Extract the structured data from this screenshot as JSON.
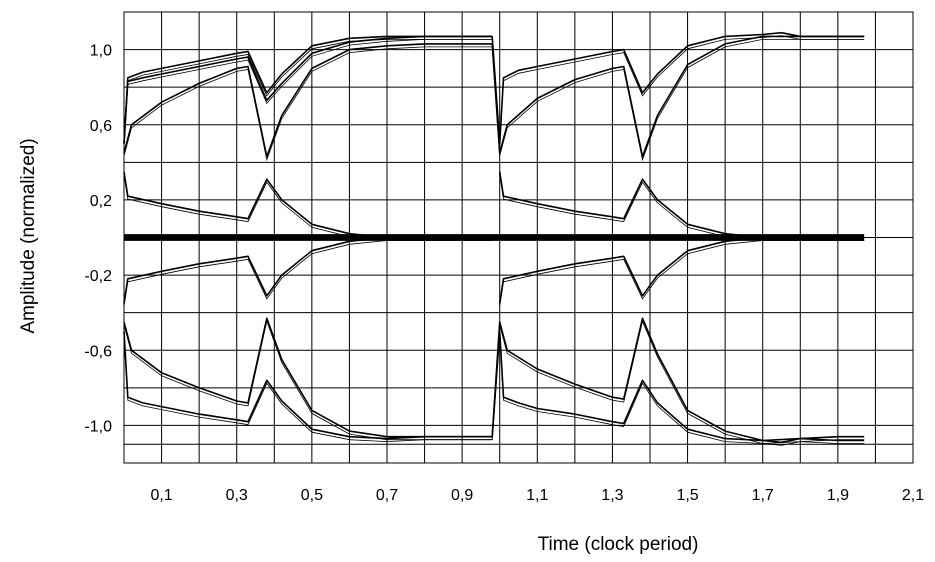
{
  "chart_data": {
    "type": "line",
    "title": "",
    "xlabel": "Time (clock period)",
    "ylabel": "Amplitude (normalized)",
    "xlim": [
      0,
      2.1
    ],
    "ylim": [
      -1.2,
      1.2
    ],
    "x_tick_labels": [
      "0,1",
      "0,3",
      "0,5",
      "0,7",
      "0,9",
      "1,1",
      "1,3",
      "1,5",
      "1,7",
      "1,9",
      "2,1"
    ],
    "x_tick_values": [
      0.1,
      0.3,
      0.5,
      0.7,
      0.9,
      1.1,
      1.3,
      1.5,
      1.7,
      1.9,
      2.1
    ],
    "y_tick_labels": [
      "1,0",
      "0,6",
      "0,2",
      "-0,2",
      "-0,6",
      "-1,0"
    ],
    "y_tick_values": [
      1.0,
      0.6,
      0.2,
      -0.2,
      -0.6,
      -1.0
    ],
    "grid": true,
    "legend": "none",
    "line_color": "#000000",
    "series": [
      {
        "x": [
          0,
          0.01,
          0.05,
          0.1,
          0.2,
          0.3,
          0.33,
          0.38,
          0.42,
          0.5,
          0.6,
          0.7,
          0.8,
          0.9,
          0.98
        ],
        "y": [
          0.5,
          0.85,
          0.88,
          0.9,
          0.94,
          0.98,
          0.99,
          0.77,
          0.87,
          1.02,
          1.06,
          1.07,
          1.07,
          1.07,
          1.07
        ]
      },
      {
        "x": [
          0,
          0.01,
          0.05,
          0.1,
          0.2,
          0.3,
          0.33,
          0.38,
          0.42,
          0.5,
          0.6,
          0.7,
          0.8,
          0.9,
          0.98
        ],
        "y": [
          0.5,
          0.83,
          0.85,
          0.87,
          0.91,
          0.95,
          0.96,
          0.73,
          0.82,
          0.98,
          1.04,
          1.06,
          1.07,
          1.07,
          1.07
        ]
      },
      {
        "x": [
          0,
          0.02,
          0.1,
          0.2,
          0.3,
          0.33,
          0.38,
          0.42,
          0.5,
          0.6,
          0.7,
          0.8,
          0.9,
          0.98
        ],
        "y": [
          0.45,
          0.6,
          0.72,
          0.82,
          0.9,
          0.91,
          0.43,
          0.65,
          0.9,
          1.0,
          1.02,
          1.03,
          1.03,
          1.03
        ]
      },
      {
        "x": [
          0,
          0.01,
          0.1,
          0.2,
          0.3,
          0.33,
          0.38,
          0.42,
          0.5,
          0.6,
          0.7,
          0.8,
          0.9,
          0.98
        ],
        "y": [
          0.35,
          0.22,
          0.18,
          0.14,
          0.11,
          0.1,
          0.31,
          0.2,
          0.07,
          0.02,
          0.0,
          0.0,
          0.0,
          0.0
        ]
      },
      {
        "x": [
          0,
          0.01,
          0.1,
          0.2,
          0.3,
          0.33,
          0.38,
          0.42,
          0.5,
          0.6,
          0.7,
          0.8,
          0.9,
          0.98
        ],
        "y": [
          -0.35,
          -0.22,
          -0.18,
          -0.14,
          -0.11,
          -0.1,
          -0.31,
          -0.2,
          -0.07,
          -0.02,
          0.0,
          0.0,
          0.0,
          0.0
        ]
      },
      {
        "x": [
          0,
          0.02,
          0.1,
          0.2,
          0.3,
          0.33,
          0.38,
          0.42,
          0.5,
          0.6,
          0.7,
          0.8,
          0.9,
          0.98
        ],
        "y": [
          -0.45,
          -0.6,
          -0.72,
          -0.8,
          -0.87,
          -0.88,
          -0.43,
          -0.65,
          -0.92,
          -1.03,
          -1.06,
          -1.06,
          -1.06,
          -1.06
        ]
      },
      {
        "x": [
          0,
          0.01,
          0.05,
          0.1,
          0.2,
          0.3,
          0.33,
          0.38,
          0.42,
          0.5,
          0.6,
          0.7,
          0.8,
          0.9,
          0.98
        ],
        "y": [
          -0.5,
          -0.85,
          -0.88,
          -0.9,
          -0.94,
          -0.97,
          -0.98,
          -0.76,
          -0.87,
          -1.02,
          -1.06,
          -1.07,
          -1.06,
          -1.06,
          -1.06
        ]
      },
      {
        "x": [
          0.98,
          1.0,
          1.01,
          1.05,
          1.1,
          1.2,
          1.3,
          1.33,
          1.38,
          1.42,
          1.5,
          1.6,
          1.7,
          1.75,
          1.8,
          1.9,
          1.97
        ],
        "y": [
          1.07,
          0.5,
          0.85,
          0.89,
          0.91,
          0.95,
          0.99,
          1.0,
          0.77,
          0.87,
          1.02,
          1.07,
          1.08,
          1.09,
          1.07,
          1.07,
          1.07
        ]
      },
      {
        "x": [
          0.98,
          1.0,
          1.02,
          1.1,
          1.2,
          1.3,
          1.33,
          1.38,
          1.42,
          1.5,
          1.6,
          1.7,
          1.8,
          1.9,
          1.97
        ],
        "y": [
          1.03,
          0.45,
          0.6,
          0.74,
          0.84,
          0.9,
          0.91,
          0.43,
          0.65,
          0.92,
          1.03,
          1.07,
          1.07,
          1.07,
          1.07
        ]
      },
      {
        "x": [
          1.0,
          1.01,
          1.1,
          1.2,
          1.3,
          1.33,
          1.38,
          1.42,
          1.5,
          1.6,
          1.7,
          1.8,
          1.9,
          1.97
        ],
        "y": [
          0.35,
          0.22,
          0.18,
          0.14,
          0.11,
          0.1,
          0.31,
          0.2,
          0.07,
          0.02,
          0.0,
          0.0,
          0.0,
          0.0
        ]
      },
      {
        "x": [
          1.0,
          1.01,
          1.1,
          1.2,
          1.3,
          1.33,
          1.38,
          1.42,
          1.5,
          1.6,
          1.7,
          1.8,
          1.9,
          1.97
        ],
        "y": [
          -0.35,
          -0.22,
          -0.18,
          -0.14,
          -0.11,
          -0.1,
          -0.31,
          -0.2,
          -0.07,
          -0.02,
          0.0,
          0.0,
          0.0,
          0.0
        ]
      },
      {
        "x": [
          0.98,
          1.0,
          1.02,
          1.1,
          1.2,
          1.3,
          1.33,
          1.38,
          1.42,
          1.5,
          1.6,
          1.7,
          1.8,
          1.9,
          1.97
        ],
        "y": [
          -1.06,
          -0.45,
          -0.6,
          -0.7,
          -0.78,
          -0.85,
          -0.86,
          -0.43,
          -0.62,
          -0.92,
          -1.03,
          -1.08,
          -1.07,
          -1.06,
          -1.06
        ]
      },
      {
        "x": [
          0.98,
          1.0,
          1.01,
          1.05,
          1.1,
          1.2,
          1.3,
          1.33,
          1.38,
          1.42,
          1.5,
          1.6,
          1.7,
          1.75,
          1.8,
          1.9,
          1.97
        ],
        "y": [
          -1.06,
          -0.5,
          -0.85,
          -0.88,
          -0.91,
          -0.94,
          -0.98,
          -0.99,
          -0.76,
          -0.88,
          -1.02,
          -1.07,
          -1.08,
          -1.09,
          -1.07,
          -1.08,
          -1.08
        ]
      }
    ]
  }
}
